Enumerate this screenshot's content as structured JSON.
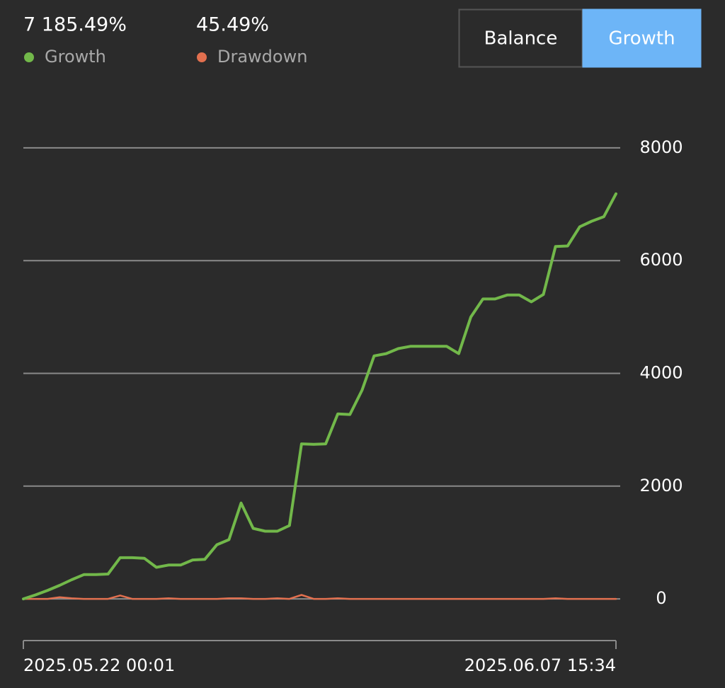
{
  "chart_data": {
    "type": "line",
    "buttons": [
      "Balance",
      "Growth"
    ],
    "active_button": 1,
    "legend_values": [
      "7 185.49%",
      "45.49%"
    ],
    "categories": [
      "2025.05.22 00:01",
      null,
      null,
      null,
      null,
      null,
      null,
      null,
      null,
      null,
      null,
      null,
      null,
      null,
      null,
      null,
      null,
      null,
      null,
      null,
      null,
      null,
      null,
      null,
      null,
      null,
      null,
      null,
      null,
      null,
      null,
      null,
      null,
      null,
      null,
      null,
      null,
      null,
      null,
      null,
      null,
      null,
      null,
      null,
      null,
      null,
      null,
      null,
      null,
      "2025.06.07 15:34"
    ],
    "series": [
      {
        "name": "Growth",
        "color": "#72b84a",
        "values": [
          0,
          70,
          150,
          240,
          340,
          430,
          430,
          440,
          730,
          730,
          720,
          560,
          600,
          600,
          690,
          700,
          960,
          1050,
          1700,
          1250,
          1200,
          1200,
          1300,
          2750,
          2740,
          2750,
          3280,
          3270,
          3700,
          4310,
          4350,
          4440,
          4480,
          4480,
          4480,
          4480,
          4350,
          5000,
          5320,
          5320,
          5390,
          5390,
          5270,
          5400,
          6250,
          6260,
          6600,
          6700,
          6780,
          7185.49
        ]
      },
      {
        "name": "Drawdown",
        "color": "#e2704f",
        "values": [
          0,
          0,
          0,
          30,
          10,
          0,
          0,
          0,
          60,
          0,
          0,
          0,
          10,
          0,
          0,
          0,
          0,
          10,
          10,
          0,
          0,
          10,
          0,
          70,
          0,
          0,
          10,
          0,
          0,
          0,
          0,
          0,
          0,
          0,
          0,
          0,
          0,
          0,
          0,
          0,
          0,
          0,
          0,
          0,
          10,
          0,
          0,
          0,
          0,
          0
        ]
      }
    ],
    "ylim": [
      -740,
      8740
    ],
    "yticks": [
      0,
      2000,
      4000,
      6000,
      8000
    ],
    "grid": true
  }
}
